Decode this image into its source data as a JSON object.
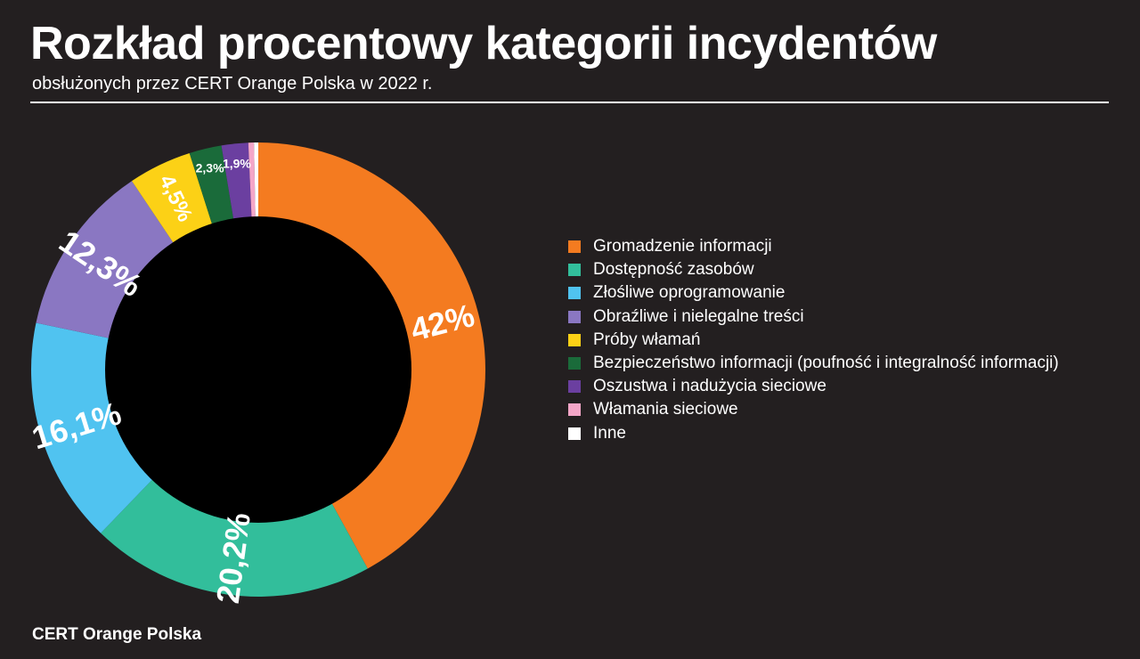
{
  "header": {
    "title": "Rozkład procentowy kategorii incydentów",
    "subtitle": "obsłużonych przez CERT Orange Polska w 2022 r."
  },
  "footer": {
    "source": "CERT Orange Polska"
  },
  "chart_data": {
    "type": "pie",
    "variant": "donut",
    "legend_position": "right",
    "slices": [
      {
        "name": "Gromadzenie informacji",
        "value": 42.0,
        "label": "42%",
        "color": "#f47b20"
      },
      {
        "name": "Dostępność zasobów",
        "value": 20.2,
        "label": "20,2%",
        "color": "#32be9b"
      },
      {
        "name": "Złośliwe oprogramowanie",
        "value": 16.1,
        "label": "16,1%",
        "color": "#50c3f0"
      },
      {
        "name": "Obraźliwe i nielegalne treści",
        "value": 12.3,
        "label": "12,3%",
        "color": "#8a77c2"
      },
      {
        "name": "Próby włamań",
        "value": 4.5,
        "label": "4,5%",
        "color": "#fcd116"
      },
      {
        "name": "Bezpieczeństwo informacji (poufność i integralność informacji)",
        "value": 2.3,
        "label": "2,3%",
        "color": "#1a6b3a"
      },
      {
        "name": "Oszustwa i nadużycia sieciowe",
        "value": 1.9,
        "label": "1,9%",
        "color": "#6b3fa0"
      },
      {
        "name": "Włamania sieciowe",
        "value": 0.4,
        "label": "",
        "color": "#f4a6c8"
      },
      {
        "name": "Inne",
        "value": 0.3,
        "label": "",
        "color": "#ffffff"
      }
    ]
  }
}
